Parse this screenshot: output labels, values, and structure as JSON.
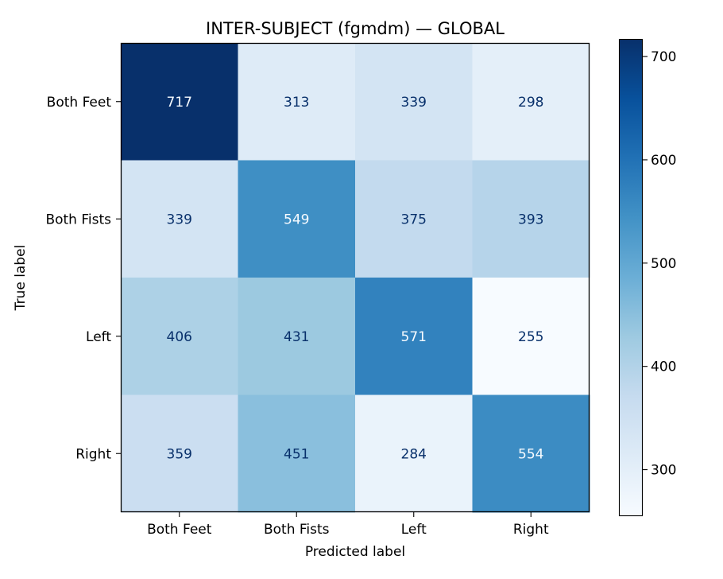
{
  "chart_data": {
    "type": "heatmap",
    "title": "INTER-SUBJECT (fgmdm) — GLOBAL",
    "xlabel": "Predicted label",
    "ylabel": "True label",
    "x_categories": [
      "Both Feet",
      "Both Fists",
      "Left",
      "Right"
    ],
    "y_categories": [
      "Both Feet",
      "Both Fists",
      "Left",
      "Right"
    ],
    "values": [
      [
        717,
        313,
        339,
        298
      ],
      [
        339,
        549,
        375,
        393
      ],
      [
        406,
        431,
        571,
        255
      ],
      [
        359,
        451,
        284,
        554
      ]
    ],
    "colormap": "Blues",
    "colorbar": {
      "range": [
        255,
        717
      ],
      "ticks": [
        300,
        400,
        500,
        600,
        700
      ]
    },
    "text_colors": {
      "dark": "#08306b",
      "light": "#f7fbff"
    }
  }
}
